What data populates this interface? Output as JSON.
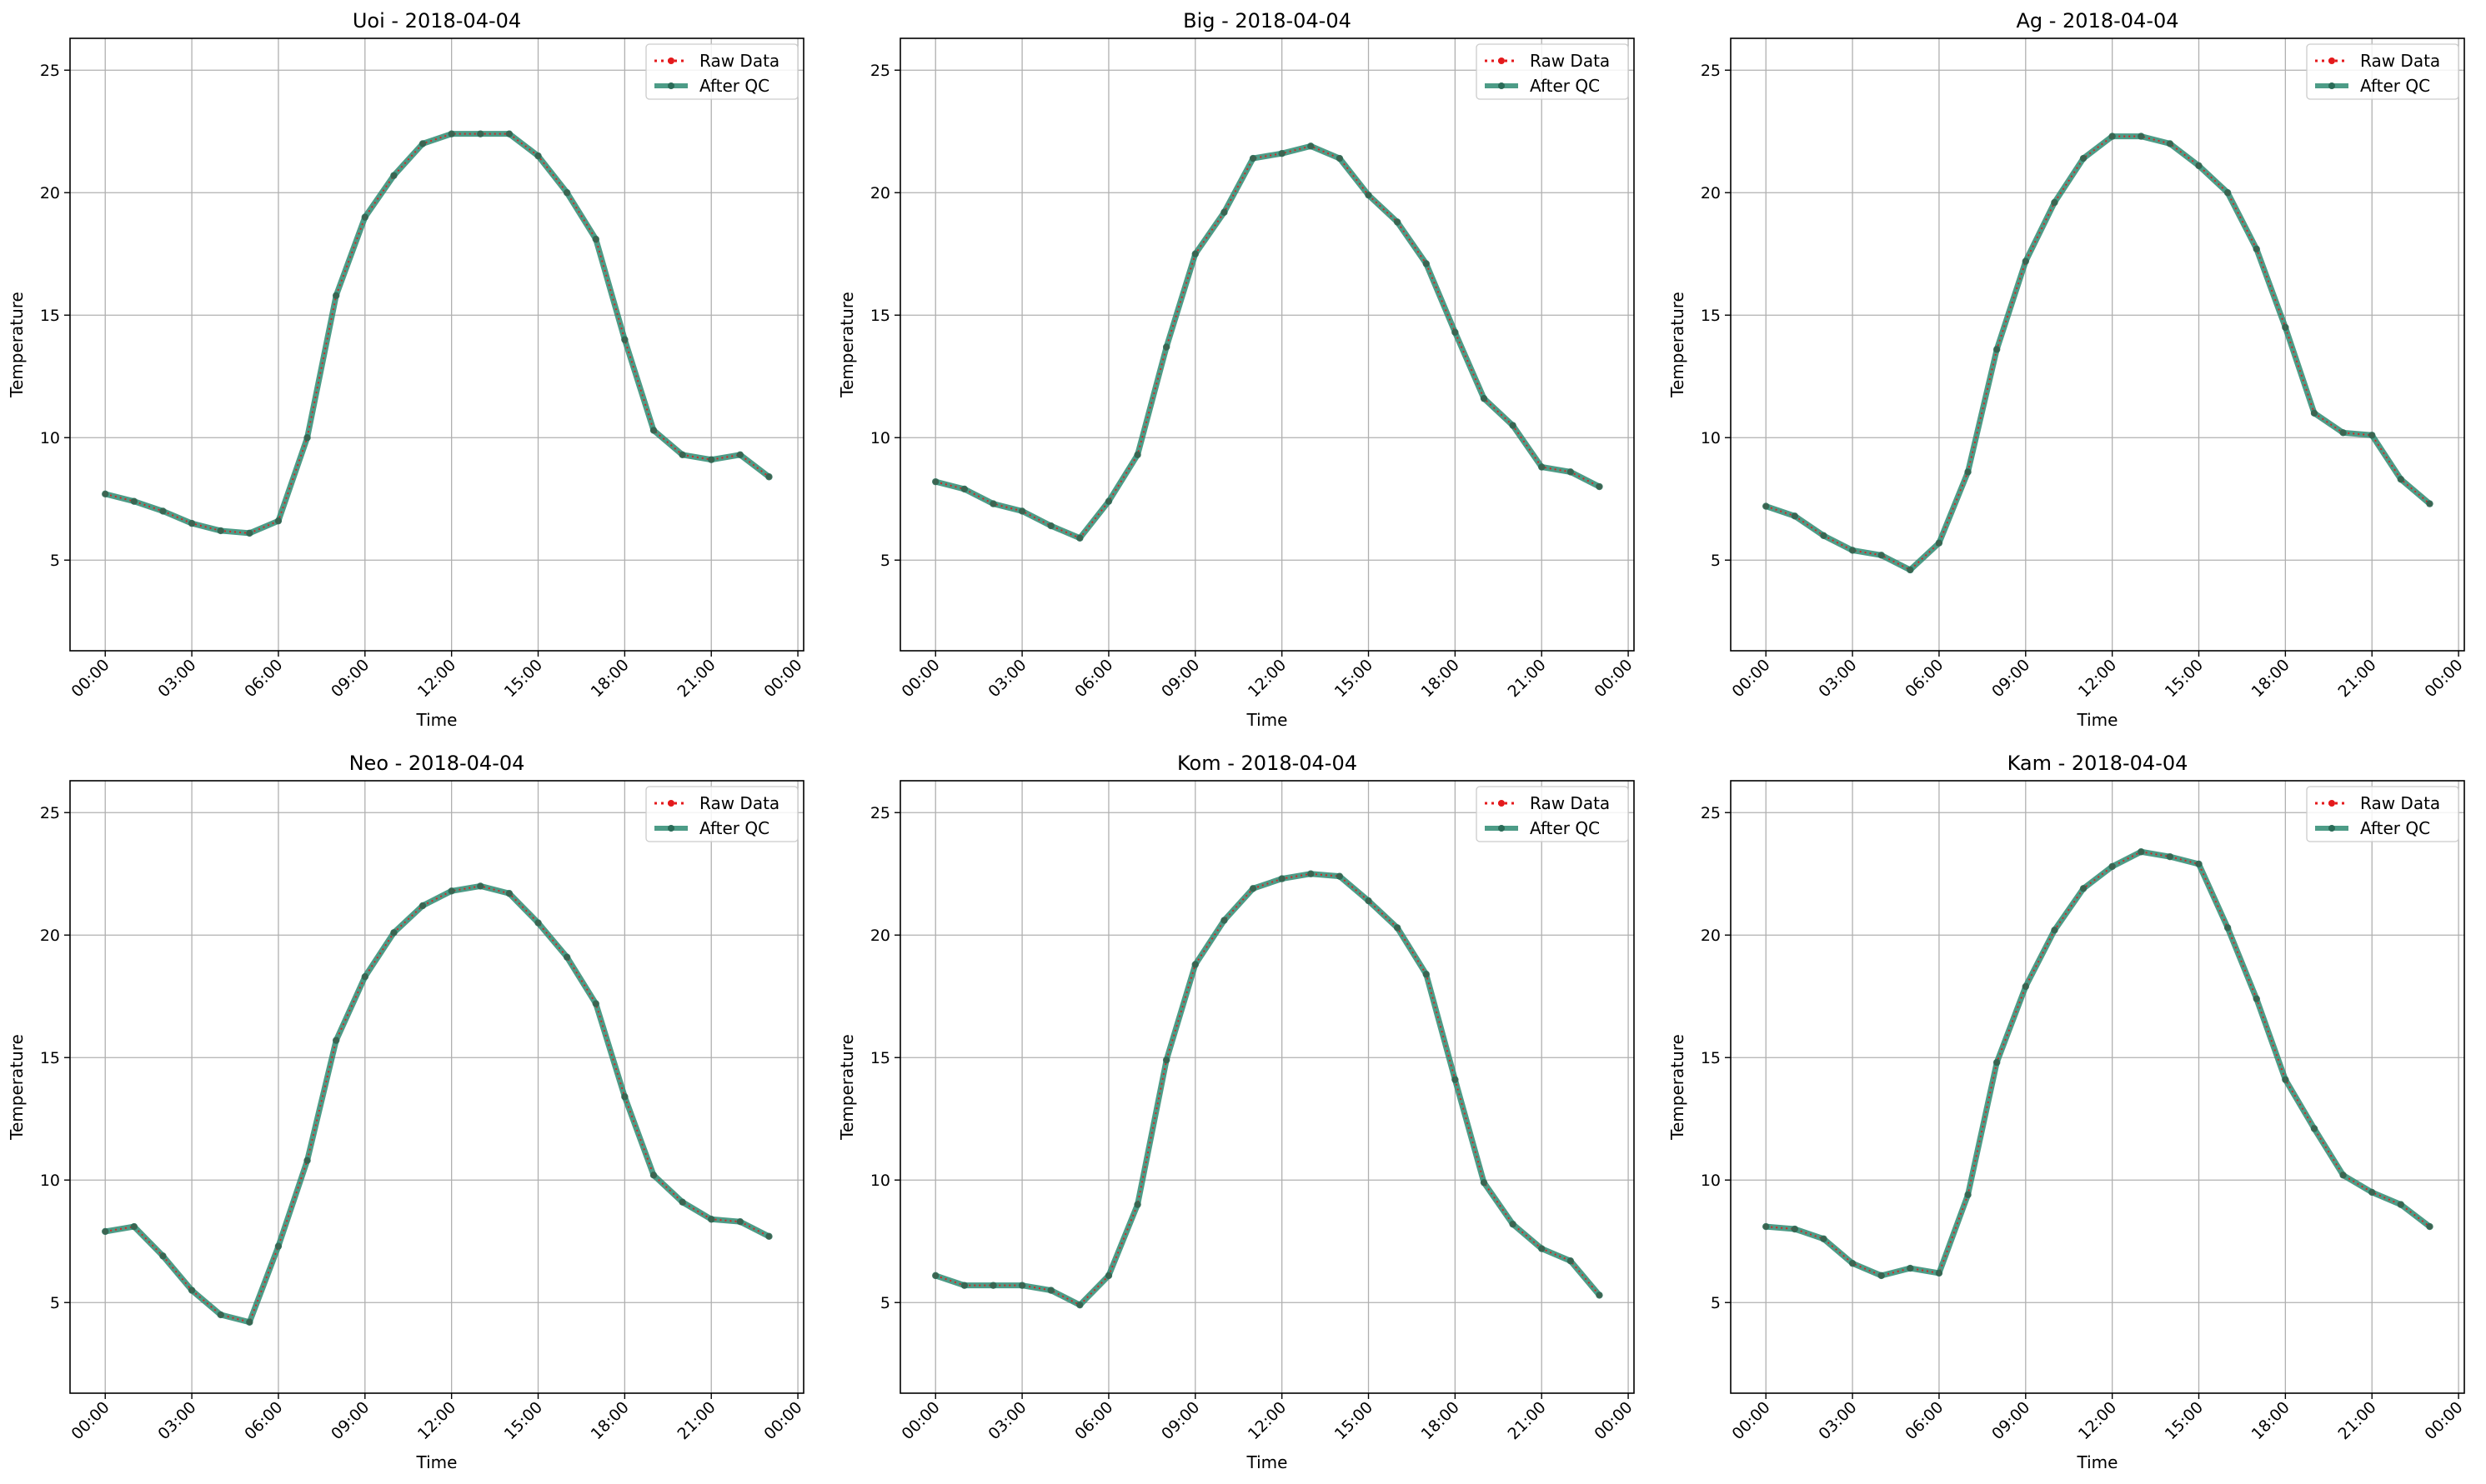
{
  "colors": {
    "raw": "#e41a1c",
    "qc": "#2e8b72",
    "grid": "#b0b0b0",
    "axes": "#000000",
    "legend_border": "#cccccc"
  },
  "chart_data": [
    {
      "type": "line",
      "title": "Uoi - 2018-04-04",
      "xlabel": "Time",
      "ylabel": "Temperature",
      "ylim": [
        1.3,
        26.3
      ],
      "yticks": [
        "5",
        "10",
        "15",
        "20",
        "25"
      ],
      "xticks": [
        "00:00",
        "03:00",
        "06:00",
        "09:00",
        "12:00",
        "15:00",
        "18:00",
        "21:00",
        "00:00"
      ],
      "x_hours": [
        0,
        1,
        2,
        3,
        4,
        5,
        6,
        7,
        8,
        9,
        10,
        11,
        12,
        13,
        14,
        15,
        16,
        17,
        18,
        19,
        20,
        21,
        22,
        23
      ],
      "grid": true,
      "legend": "top-right",
      "series": [
        {
          "name": "Raw Data",
          "style": "dotted",
          "values": [
            7.7,
            7.4,
            7.0,
            6.5,
            6.2,
            6.1,
            6.6,
            10.0,
            15.8,
            19.0,
            20.7,
            22.0,
            22.4,
            22.4,
            22.4,
            21.5,
            20.0,
            18.1,
            14.0,
            10.3,
            9.3,
            9.1,
            9.3,
            8.4
          ]
        },
        {
          "name": "After QC",
          "style": "solid",
          "values": [
            7.7,
            7.4,
            7.0,
            6.5,
            6.2,
            6.1,
            6.6,
            10.0,
            15.8,
            19.0,
            20.7,
            22.0,
            22.4,
            22.4,
            22.4,
            21.5,
            20.0,
            18.1,
            14.0,
            10.3,
            9.3,
            9.1,
            9.3,
            8.4
          ]
        }
      ]
    },
    {
      "type": "line",
      "title": "Big - 2018-04-04",
      "xlabel": "Time",
      "ylabel": "Temperature",
      "ylim": [
        1.3,
        26.3
      ],
      "yticks": [
        "5",
        "10",
        "15",
        "20",
        "25"
      ],
      "xticks": [
        "00:00",
        "03:00",
        "06:00",
        "09:00",
        "12:00",
        "15:00",
        "18:00",
        "21:00",
        "00:00"
      ],
      "x_hours": [
        0,
        1,
        2,
        3,
        4,
        5,
        6,
        7,
        8,
        9,
        10,
        11,
        12,
        13,
        14,
        15,
        16,
        17,
        18,
        19,
        20,
        21,
        22,
        23
      ],
      "grid": true,
      "legend": "top-right",
      "series": [
        {
          "name": "Raw Data",
          "style": "dotted",
          "values": [
            8.2,
            7.9,
            7.3,
            7.0,
            6.4,
            5.9,
            7.4,
            9.3,
            13.7,
            17.5,
            19.2,
            21.4,
            21.6,
            21.9,
            21.4,
            19.9,
            18.8,
            17.1,
            14.3,
            11.6,
            10.5,
            8.8,
            8.6,
            8.0
          ]
        },
        {
          "name": "After QC",
          "style": "solid",
          "values": [
            8.2,
            7.9,
            7.3,
            7.0,
            6.4,
            5.9,
            7.4,
            9.3,
            13.7,
            17.5,
            19.2,
            21.4,
            21.6,
            21.9,
            21.4,
            19.9,
            18.8,
            17.1,
            14.3,
            11.6,
            10.5,
            8.8,
            8.6,
            8.0
          ]
        }
      ]
    },
    {
      "type": "line",
      "title": "Ag - 2018-04-04",
      "xlabel": "Time",
      "ylabel": "Temperature",
      "ylim": [
        1.3,
        26.3
      ],
      "yticks": [
        "5",
        "10",
        "15",
        "20",
        "25"
      ],
      "xticks": [
        "00:00",
        "03:00",
        "06:00",
        "09:00",
        "12:00",
        "15:00",
        "18:00",
        "21:00",
        "00:00"
      ],
      "x_hours": [
        0,
        1,
        2,
        3,
        4,
        5,
        6,
        7,
        8,
        9,
        10,
        11,
        12,
        13,
        14,
        15,
        16,
        17,
        18,
        19,
        20,
        21,
        22,
        23
      ],
      "grid": true,
      "legend": "top-right",
      "series": [
        {
          "name": "Raw Data",
          "style": "dotted",
          "values": [
            7.2,
            6.8,
            6.0,
            5.4,
            5.2,
            4.6,
            5.7,
            8.6,
            13.6,
            17.2,
            19.6,
            21.4,
            22.3,
            22.3,
            22.0,
            21.1,
            20.0,
            17.7,
            14.5,
            11.0,
            10.2,
            10.1,
            8.3,
            7.3
          ]
        },
        {
          "name": "After QC",
          "style": "solid",
          "values": [
            7.2,
            6.8,
            6.0,
            5.4,
            5.2,
            4.6,
            5.7,
            8.6,
            13.6,
            17.2,
            19.6,
            21.4,
            22.3,
            22.3,
            22.0,
            21.1,
            20.0,
            17.7,
            14.5,
            11.0,
            10.2,
            10.1,
            8.3,
            7.3
          ]
        }
      ]
    },
    {
      "type": "line",
      "title": "Neo - 2018-04-04",
      "xlabel": "Time",
      "ylabel": "Temperature",
      "ylim": [
        1.3,
        26.3
      ],
      "yticks": [
        "5",
        "10",
        "15",
        "20",
        "25"
      ],
      "xticks": [
        "00:00",
        "03:00",
        "06:00",
        "09:00",
        "12:00",
        "15:00",
        "18:00",
        "21:00",
        "00:00"
      ],
      "x_hours": [
        0,
        1,
        2,
        3,
        4,
        5,
        6,
        7,
        8,
        9,
        10,
        11,
        12,
        13,
        14,
        15,
        16,
        17,
        18,
        19,
        20,
        21,
        22,
        23
      ],
      "grid": true,
      "legend": "top-right",
      "series": [
        {
          "name": "Raw Data",
          "style": "dotted",
          "values": [
            7.9,
            8.1,
            6.9,
            5.5,
            4.5,
            4.2,
            7.3,
            10.8,
            15.7,
            18.3,
            20.1,
            21.2,
            21.8,
            22.0,
            21.7,
            20.5,
            19.1,
            17.2,
            13.4,
            10.2,
            9.1,
            8.4,
            8.3,
            7.7
          ]
        },
        {
          "name": "After QC",
          "style": "solid",
          "values": [
            7.9,
            8.1,
            6.9,
            5.5,
            4.5,
            4.2,
            7.3,
            10.8,
            15.7,
            18.3,
            20.1,
            21.2,
            21.8,
            22.0,
            21.7,
            20.5,
            19.1,
            17.2,
            13.4,
            10.2,
            9.1,
            8.4,
            8.3,
            7.7
          ]
        }
      ]
    },
    {
      "type": "line",
      "title": "Kom - 2018-04-04",
      "xlabel": "Time",
      "ylabel": "Temperature",
      "ylim": [
        1.3,
        26.3
      ],
      "yticks": [
        "5",
        "10",
        "15",
        "20",
        "25"
      ],
      "xticks": [
        "00:00",
        "03:00",
        "06:00",
        "09:00",
        "12:00",
        "15:00",
        "18:00",
        "21:00",
        "00:00"
      ],
      "x_hours": [
        0,
        1,
        2,
        3,
        4,
        5,
        6,
        7,
        8,
        9,
        10,
        11,
        12,
        13,
        14,
        15,
        16,
        17,
        18,
        19,
        20,
        21,
        22,
        23
      ],
      "grid": true,
      "legend": "top-right",
      "series": [
        {
          "name": "Raw Data",
          "style": "dotted",
          "values": [
            6.1,
            5.7,
            5.7,
            5.7,
            5.5,
            4.9,
            6.1,
            9.0,
            14.9,
            18.8,
            20.6,
            21.9,
            22.3,
            22.5,
            22.4,
            21.4,
            20.3,
            18.4,
            14.1,
            9.9,
            8.2,
            7.2,
            6.7,
            5.3
          ]
        },
        {
          "name": "After QC",
          "style": "solid",
          "values": [
            6.1,
            5.7,
            5.7,
            5.7,
            5.5,
            4.9,
            6.1,
            9.0,
            14.9,
            18.8,
            20.6,
            21.9,
            22.3,
            22.5,
            22.4,
            21.4,
            20.3,
            18.4,
            14.1,
            9.9,
            8.2,
            7.2,
            6.7,
            5.3
          ]
        }
      ]
    },
    {
      "type": "line",
      "title": "Kam - 2018-04-04",
      "xlabel": "Time",
      "ylabel": "Temperature",
      "ylim": [
        1.3,
        26.3
      ],
      "yticks": [
        "5",
        "10",
        "15",
        "20",
        "25"
      ],
      "xticks": [
        "00:00",
        "03:00",
        "06:00",
        "09:00",
        "12:00",
        "15:00",
        "18:00",
        "21:00",
        "00:00"
      ],
      "x_hours": [
        0,
        1,
        2,
        3,
        4,
        5,
        6,
        7,
        8,
        9,
        10,
        11,
        12,
        13,
        14,
        15,
        16,
        17,
        18,
        19,
        20,
        21,
        22,
        23
      ],
      "grid": true,
      "legend": "top-right",
      "series": [
        {
          "name": "Raw Data",
          "style": "dotted",
          "values": [
            8.1,
            8.0,
            7.6,
            6.6,
            6.1,
            6.4,
            6.2,
            9.4,
            14.8,
            17.9,
            20.2,
            21.9,
            22.8,
            23.4,
            23.2,
            22.9,
            20.3,
            17.4,
            14.1,
            12.1,
            10.2,
            9.5,
            9.0,
            8.1
          ]
        },
        {
          "name": "After QC",
          "style": "solid",
          "values": [
            8.1,
            8.0,
            7.6,
            6.6,
            6.1,
            6.4,
            6.2,
            9.4,
            14.8,
            17.9,
            20.2,
            21.9,
            22.8,
            23.4,
            23.2,
            22.9,
            20.3,
            17.4,
            14.1,
            12.1,
            10.2,
            9.5,
            9.0,
            8.1
          ]
        }
      ]
    }
  ]
}
